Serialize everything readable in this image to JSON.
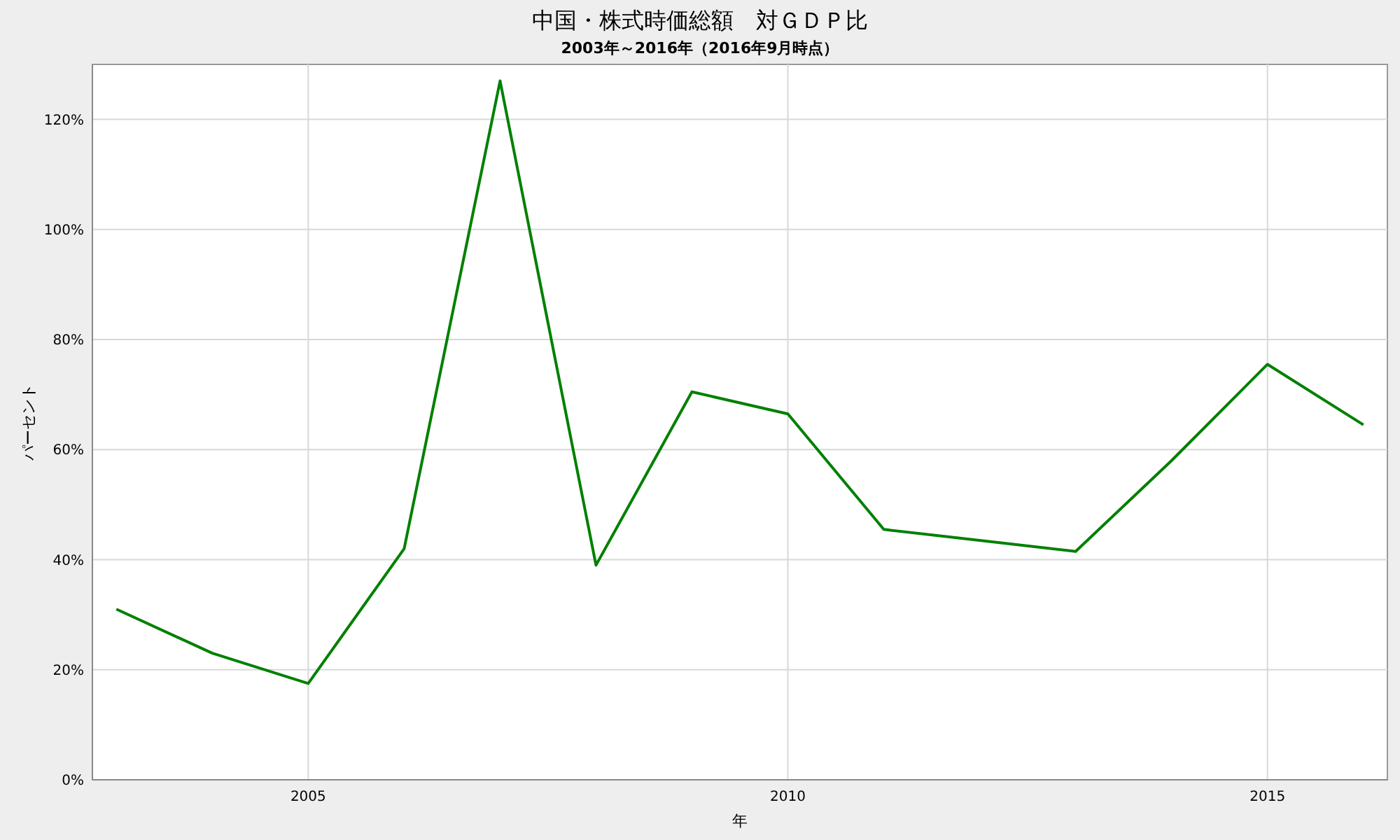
{
  "chart_data": {
    "type": "line",
    "title": "中国・株式時価総額　対ＧＤＰ比",
    "subtitle": "2003年～2016年（2016年9月時点）",
    "xlabel": "年",
    "ylabel": "パーセント",
    "x": [
      2003,
      2004,
      2005,
      2006,
      2007,
      2008,
      2009,
      2010,
      2011,
      2012,
      2013,
      2014,
      2015,
      2016
    ],
    "series": [
      {
        "color": "#008000",
        "values": [
          31,
          23,
          17.5,
          42,
          127,
          39,
          70.5,
          66.5,
          45.5,
          43.5,
          41.5,
          58,
          75.5,
          64.5
        ]
      }
    ],
    "xlim": [
      2002.75,
      2016.25
    ],
    "xticks": [
      2005,
      2010,
      2015
    ],
    "ylim": [
      0,
      130
    ],
    "yticks": [
      {
        "value": 0,
        "label": "0%"
      },
      {
        "value": 20,
        "label": "20%"
      },
      {
        "value": 40,
        "label": "40%"
      },
      {
        "value": 60,
        "label": "60%"
      },
      {
        "value": 80,
        "label": "80%"
      },
      {
        "value": 100,
        "label": "100%"
      },
      {
        "value": 120,
        "label": "120%"
      }
    ],
    "grid": true,
    "marker": "none",
    "line_style": "solid"
  }
}
